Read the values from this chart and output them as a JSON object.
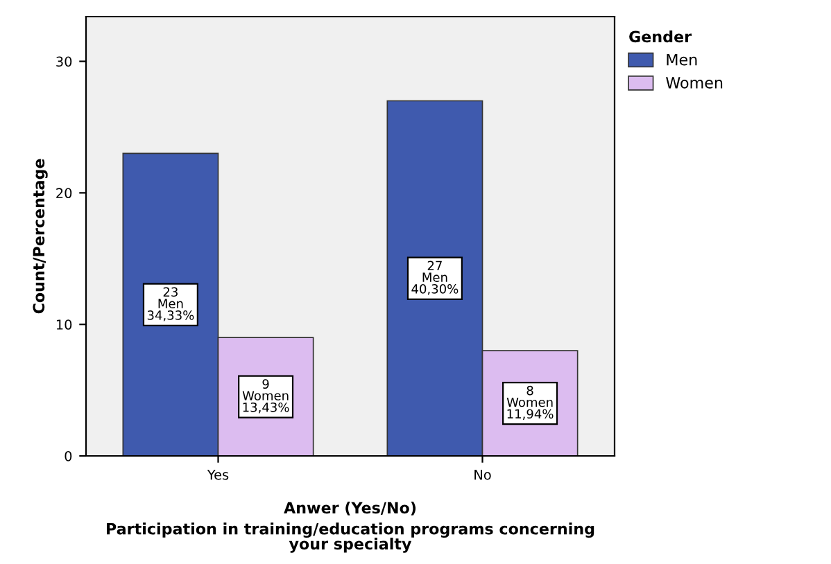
{
  "chart_data": {
    "type": "bar",
    "xlabel": "Anwer (Yes/No)",
    "ylabel": "Count/Percentage",
    "legend_title": "Gender",
    "categories": [
      "Yes",
      "No"
    ],
    "series": [
      {
        "name": "Men",
        "color": "#3f5aae",
        "values": [
          23,
          27
        ],
        "value_labels": [
          "23\nMen\n34,33%",
          "27\nMen\n40,30%"
        ]
      },
      {
        "name": "Women",
        "color": "#dcbcf0",
        "values": [
          9,
          8
        ],
        "value_labels": [
          "9\nWomen\n13,43%",
          "8\nWomen\n11,94%"
        ]
      }
    ],
    "ylim": [
      0,
      33.4
    ],
    "yticks": [
      0,
      10,
      20,
      30
    ],
    "grid": false,
    "legend": "top right",
    "annotations": [
      "Participation in training/education programs concerning\nyour specialty"
    ]
  }
}
